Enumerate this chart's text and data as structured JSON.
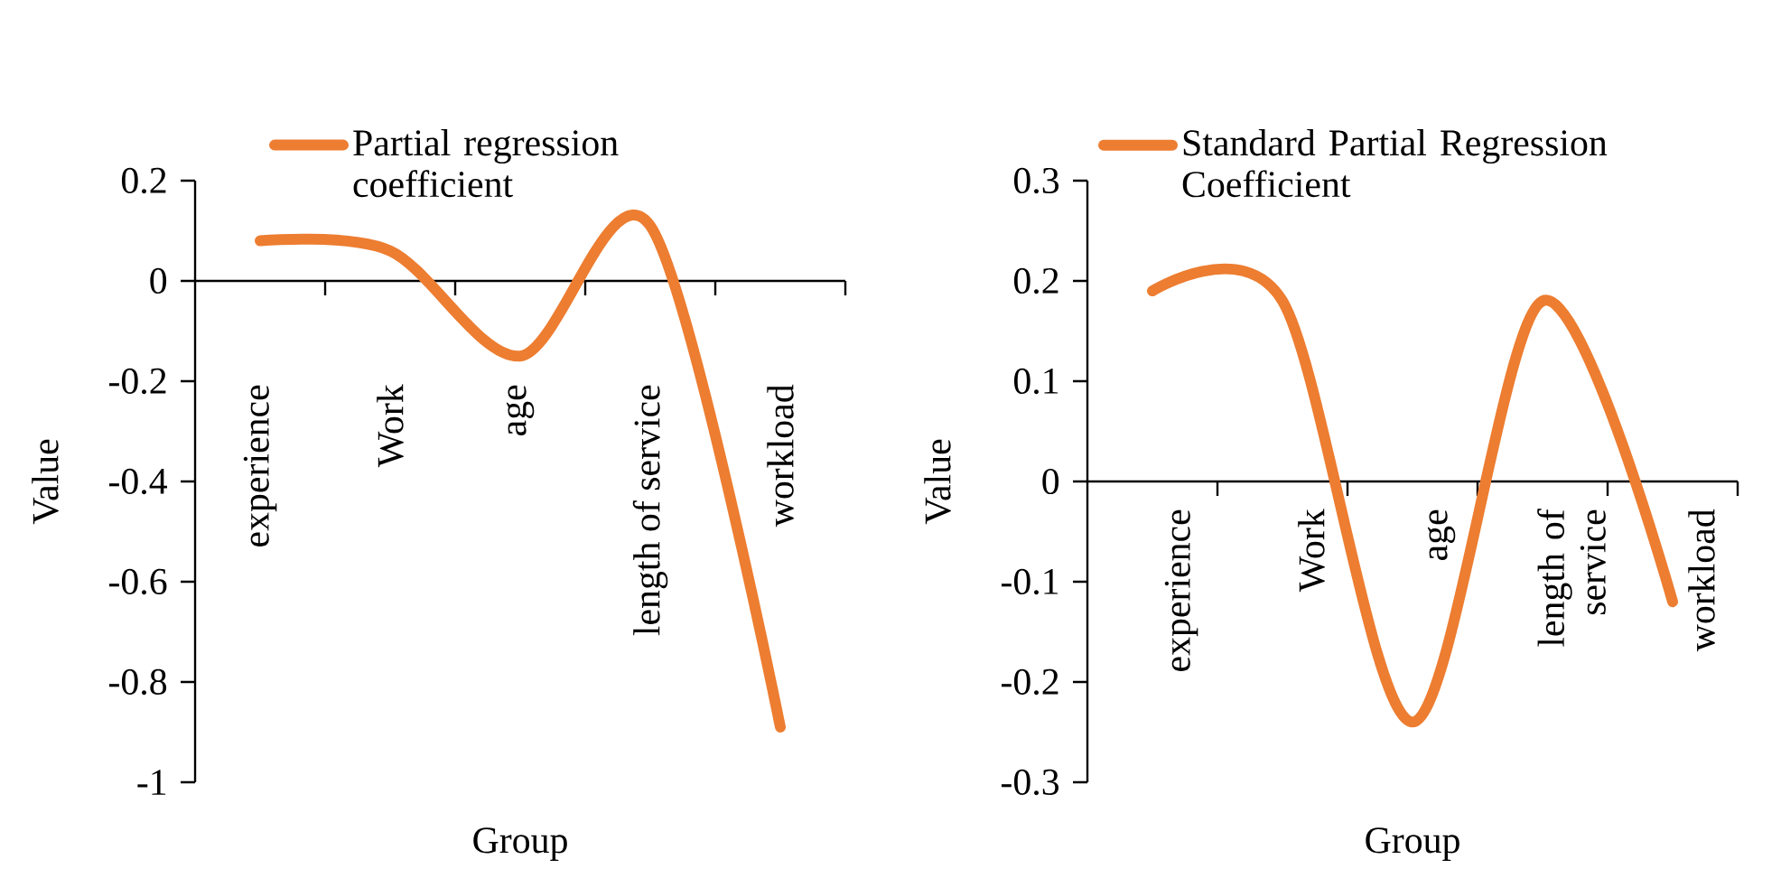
{
  "chart_data": [
    {
      "type": "line",
      "categories": [
        "experience",
        "Work",
        "age",
        "length of service",
        "workload"
      ],
      "xlabel": "Group",
      "ylabel": "Value",
      "legend": "top",
      "ylim": [
        -1,
        0.2
      ],
      "yticks": [
        -1,
        -0.8,
        -0.6,
        -0.4,
        -0.2,
        0,
        0.2
      ],
      "series": [
        {
          "name": "Partial regression coefficient",
          "color": "#ed7d31",
          "values": [
            0.08,
            0.06,
            -0.15,
            0.11,
            -0.89
          ]
        }
      ]
    },
    {
      "type": "line",
      "categories": [
        "experience",
        "Work",
        "age",
        "length of service",
        "workload"
      ],
      "xlabel": "Group",
      "ylabel": "Value",
      "legend": "top",
      "ylim": [
        -0.3,
        0.3
      ],
      "yticks": [
        -0.3,
        -0.2,
        -0.1,
        0,
        0.1,
        0.2,
        0.3
      ],
      "series": [
        {
          "name": "Standard Partial Regression Coefficient",
          "color": "#ed7d31",
          "values": [
            0.19,
            0.18,
            -0.24,
            0.18,
            -0.12
          ]
        }
      ]
    }
  ]
}
